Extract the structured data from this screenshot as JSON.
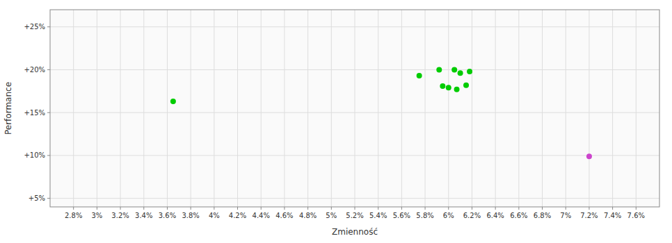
{
  "chart_data": {
    "type": "scatter",
    "x_label": "Zmienność",
    "y_label": "Performance",
    "xlim": [
      0.026,
      0.078
    ],
    "ylim": [
      0.04,
      0.27
    ],
    "xticks": [
      {
        "value": 0.028,
        "label": "2.8%"
      },
      {
        "value": 0.03,
        "label": "3%"
      },
      {
        "value": 0.032,
        "label": "3.2%"
      },
      {
        "value": 0.034,
        "label": "3.4%"
      },
      {
        "value": 0.036,
        "label": "3.6%"
      },
      {
        "value": 0.038,
        "label": "3.8%"
      },
      {
        "value": 0.04,
        "label": "4%"
      },
      {
        "value": 0.042,
        "label": "4.2%"
      },
      {
        "value": 0.044,
        "label": "4.4%"
      },
      {
        "value": 0.046,
        "label": "4.6%"
      },
      {
        "value": 0.048,
        "label": "4.8%"
      },
      {
        "value": 0.05,
        "label": "5%"
      },
      {
        "value": 0.052,
        "label": "5.2%"
      },
      {
        "value": 0.054,
        "label": "5.4%"
      },
      {
        "value": 0.056,
        "label": "5.6%"
      },
      {
        "value": 0.058,
        "label": "5.8%"
      },
      {
        "value": 0.06,
        "label": "6%"
      },
      {
        "value": 0.062,
        "label": "6.2%"
      },
      {
        "value": 0.064,
        "label": "6.4%"
      },
      {
        "value": 0.066,
        "label": "6.6%"
      },
      {
        "value": 0.068,
        "label": "6.8%"
      },
      {
        "value": 0.07,
        "label": "7%"
      },
      {
        "value": 0.072,
        "label": "7.2%"
      },
      {
        "value": 0.074,
        "label": "7.4%"
      },
      {
        "value": 0.076,
        "label": "7.6%"
      }
    ],
    "yticks": [
      {
        "value": 0.05,
        "label": "+5%"
      },
      {
        "value": 0.1,
        "label": "+10%"
      },
      {
        "value": 0.15,
        "label": "+15%"
      },
      {
        "value": 0.2,
        "label": "+20%"
      },
      {
        "value": 0.25,
        "label": "+25%"
      }
    ],
    "grid": true,
    "series": [
      {
        "color": "#00cc00",
        "x": [
          0.0365,
          0.0575,
          0.0592,
          0.0605,
          0.061,
          0.0618,
          0.0595,
          0.06,
          0.0607,
          0.0615
        ],
        "values": [
          0.163,
          0.193,
          0.2,
          0.2,
          0.196,
          0.198,
          0.181,
          0.179,
          0.177,
          0.182
        ]
      },
      {
        "color": "#cc44cc",
        "x": [
          0.072
        ],
        "values": [
          0.099
        ]
      }
    ]
  }
}
